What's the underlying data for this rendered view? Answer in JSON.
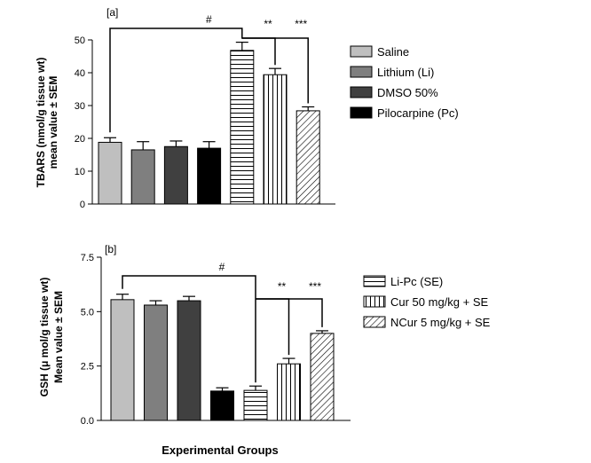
{
  "colors": {
    "saline": "#bfbfbf",
    "lithium": "#7f7f7f",
    "dmso": "#404040",
    "pilocarpine": "#000000",
    "hatch_bg": "#ffffff",
    "line": "#000000"
  },
  "xlabel": "Experimental Groups",
  "legend_a": [
    {
      "label": "Saline",
      "pattern": "saline"
    },
    {
      "label": "Lithium (Li)",
      "pattern": "lithium"
    },
    {
      "label": "DMSO 50%",
      "pattern": "dmso"
    },
    {
      "label": "Pilocarpine (Pc)",
      "pattern": "pilocarpine"
    }
  ],
  "legend_b": [
    {
      "label": "Li-Pc (SE)",
      "pattern": "horiz"
    },
    {
      "label": "Cur 50 mg/kg + SE",
      "pattern": "vert"
    },
    {
      "label": "NCur 5 mg/kg + SE",
      "pattern": "diag"
    }
  ],
  "chart_data": [
    {
      "type": "bar",
      "panel_label": "[a]",
      "ylabel_lines": [
        "TBARS (nmol/g tissue wt)",
        "mean value ± SEM"
      ],
      "ylim": [
        0,
        50
      ],
      "yticks": [
        0,
        10,
        20,
        30,
        40,
        50
      ],
      "ytick_labels": [
        "0",
        "10",
        "20",
        "30",
        "40",
        "50"
      ],
      "categories": [
        "Saline",
        "Lithium (Li)",
        "DMSO 50%",
        "Pilocarpine (Pc)",
        "Li-Pc (SE)",
        "Cur 50 mg/kg + SE",
        "NCur 5 mg/kg + SE"
      ],
      "values": [
        18.8,
        16.5,
        17.5,
        17.0,
        46.8,
        39.4,
        28.4
      ],
      "errors": [
        1.4,
        2.5,
        1.7,
        2.0,
        2.5,
        1.9,
        1.2
      ],
      "significance": [
        {
          "label": "#",
          "from": 0,
          "to": 4
        },
        {
          "label": "**",
          "from": 4,
          "to": 5
        },
        {
          "label": "***",
          "from": 4,
          "to": 6
        }
      ]
    },
    {
      "type": "bar",
      "panel_label": "[b]",
      "ylabel_lines": [
        "GSH (μ mol/g tissue wt)",
        "Mean value ± SEM"
      ],
      "ylim": [
        0,
        7.5
      ],
      "yticks": [
        0,
        2.5,
        5.0,
        7.5
      ],
      "ytick_labels": [
        "0.0",
        "2.5",
        "5.0",
        "7.5"
      ],
      "categories": [
        "Saline",
        "Lithium (Li)",
        "DMSO 50%",
        "Pilocarpine (Pc)",
        "Li-Pc (SE)",
        "Cur 50 mg/kg + SE",
        "NCur 5 mg/kg + SE"
      ],
      "values": [
        5.55,
        5.3,
        5.5,
        1.35,
        1.38,
        2.6,
        4.0
      ],
      "errors": [
        0.25,
        0.2,
        0.2,
        0.15,
        0.2,
        0.25,
        0.12
      ],
      "significance": [
        {
          "label": "#",
          "from": 0,
          "to": 4
        },
        {
          "label": "**",
          "from": 4,
          "to": 5
        },
        {
          "label": "***",
          "from": 4,
          "to": 6
        }
      ]
    }
  ]
}
